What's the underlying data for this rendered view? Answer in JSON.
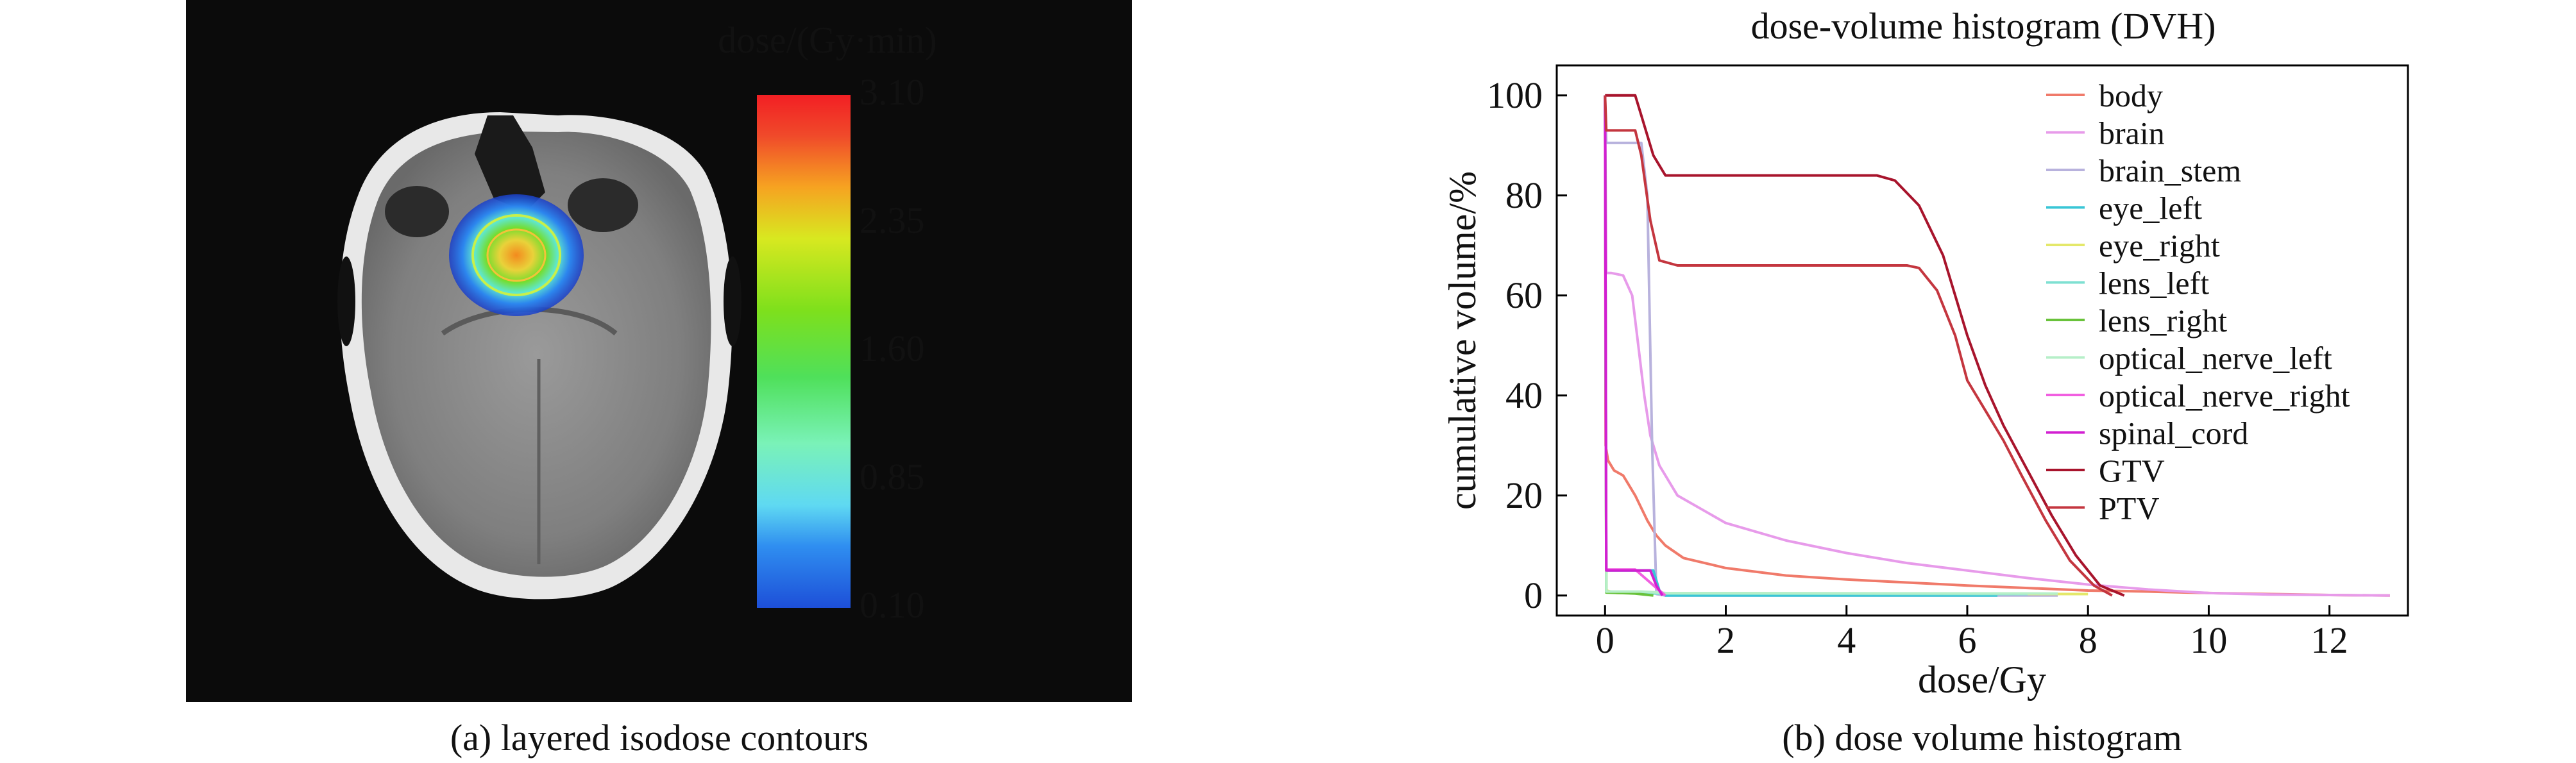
{
  "panel_a": {
    "caption": "(a) layered isodose contours",
    "colorbar": {
      "title": "dose/(Gy·min)",
      "ticks": [
        "3.10",
        "2.35",
        "1.60",
        "0.85",
        "0.10"
      ]
    }
  },
  "panel_b": {
    "caption": "(b) dose volume histogram"
  },
  "chart_data": {
    "type": "line",
    "title": "dose-volume histogram (DVH)",
    "xlabel": "dose/Gy",
    "ylabel": "cumulative volume/%",
    "xlim": [
      -0.8,
      13.3
    ],
    "ylim": [
      -4,
      106
    ],
    "xticks": [
      0,
      2,
      4,
      6,
      8,
      10,
      12
    ],
    "yticks": [
      0,
      20,
      40,
      60,
      80,
      100
    ],
    "grid": false,
    "legend_position": "top-right",
    "series": [
      {
        "name": "body",
        "color": "#f07a6a",
        "x": [
          0,
          0.01,
          0.05,
          0.15,
          0.3,
          0.5,
          0.7,
          0.85,
          1.0,
          1.3,
          2,
          3,
          4,
          5,
          6,
          7,
          8,
          9,
          10,
          11,
          12,
          13
        ],
        "y": [
          100,
          30,
          27,
          25,
          24,
          20,
          15,
          12,
          10,
          7.5,
          5.5,
          4,
          3.2,
          2.6,
          2,
          1.5,
          1,
          0.8,
          0.5,
          0.3,
          0.1,
          0
        ]
      },
      {
        "name": "brain",
        "color": "#e79bea",
        "x": [
          0,
          0.02,
          0.1,
          0.3,
          0.45,
          0.55,
          0.65,
          0.75,
          0.9,
          1.2,
          2,
          3,
          4,
          5,
          6,
          7,
          8,
          9,
          10,
          11,
          12,
          13
        ],
        "y": [
          100,
          64.5,
          64.5,
          64,
          60,
          50,
          40,
          32,
          26,
          20,
          14.5,
          11,
          8.5,
          6.5,
          5,
          3.5,
          2.2,
          1.2,
          0.5,
          0.2,
          0.1,
          0
        ]
      },
      {
        "name": "brain_stem",
        "color": "#b8b2dd",
        "x": [
          0,
          0.02,
          0.6,
          0.7,
          0.78,
          0.85,
          1.0,
          7.5
        ],
        "y": [
          100,
          90.5,
          90.5,
          80,
          30,
          0.3,
          0,
          0
        ]
      },
      {
        "name": "eye_left",
        "color": "#39c6d6",
        "x": [
          0,
          0.02,
          0.5,
          0.8,
          0.9,
          1.0,
          6.5
        ],
        "y": [
          100,
          5,
          5,
          5,
          1,
          0,
          0
        ]
      },
      {
        "name": "eye_right",
        "color": "#e4e86a",
        "x": [
          0,
          0.02,
          0.2,
          0.5,
          8
        ],
        "y": [
          100,
          1,
          0.5,
          0.5,
          0.3
        ]
      },
      {
        "name": "lens_left",
        "color": "#7ee0d2",
        "x": [
          0,
          0.02,
          0.5,
          0.8,
          7
        ],
        "y": [
          100,
          0.8,
          0.6,
          0.4,
          0.3
        ]
      },
      {
        "name": "lens_right",
        "color": "#69c23b",
        "x": [
          0,
          0.02,
          0.5,
          0.8
        ],
        "y": [
          100,
          0.6,
          0.4,
          0
        ]
      },
      {
        "name": "optical_nerve_left",
        "color": "#b6efc8",
        "x": [
          0,
          0.02,
          0.6,
          0.9,
          1.0,
          7.5
        ],
        "y": [
          100,
          0.8,
          0.8,
          0.6,
          0.5,
          0.4
        ]
      },
      {
        "name": "optical_nerve_right",
        "color": "#f15fe0",
        "x": [
          0,
          0.02,
          0.5,
          0.9,
          1.0
        ],
        "y": [
          100,
          5.2,
          5.2,
          1,
          0
        ]
      },
      {
        "name": "spinal_cord",
        "color": "#d21fd1",
        "x": [
          0,
          0.02,
          0.5,
          0.75,
          0.85,
          0.95
        ],
        "y": [
          100,
          5,
          5,
          5,
          2,
          0
        ]
      },
      {
        "name": "GTV",
        "color": "#a8142c",
        "x": [
          0,
          0.02,
          0.2,
          0.5,
          0.6,
          0.8,
          1.0,
          1.5,
          3,
          4,
          4.5,
          4.8,
          5.2,
          5.6,
          6.0,
          6.3,
          6.6,
          7.0,
          7.4,
          7.8,
          8.2,
          8.6
        ],
        "y": [
          100,
          100,
          100,
          100,
          96,
          88,
          84,
          84,
          84,
          84,
          84,
          83,
          78,
          68,
          52,
          42,
          34,
          25,
          16,
          8,
          2,
          0
        ]
      },
      {
        "name": "PTV",
        "color": "#c4363f",
        "x": [
          0,
          0.02,
          0.2,
          0.5,
          0.6,
          0.75,
          0.9,
          1.2,
          3,
          4,
          5,
          5.2,
          5.5,
          5.8,
          6.0,
          6.3,
          6.6,
          6.9,
          7.3,
          7.7,
          8.1,
          8.4
        ],
        "y": [
          100,
          93,
          93,
          93,
          88,
          75,
          67,
          66,
          66,
          66,
          66,
          65.5,
          61,
          52,
          43,
          37,
          31,
          24,
          15,
          7,
          2,
          0
        ]
      }
    ]
  }
}
